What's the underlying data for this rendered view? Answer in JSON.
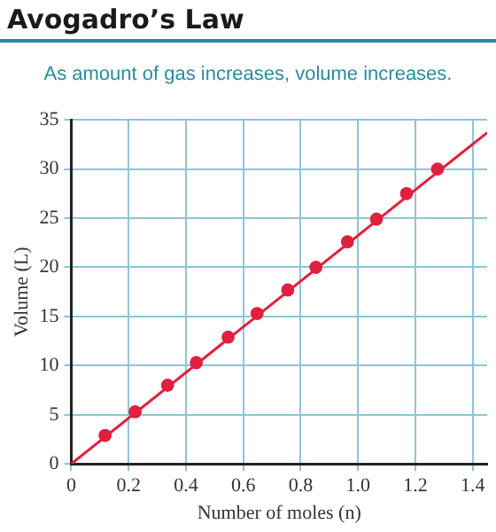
{
  "chart_data": {
    "type": "scatter",
    "title": "Avogadro’s Law",
    "subtitle": "As amount of gas increases, volume increases.",
    "xlabel": "Number of moles (n)",
    "ylabel": "Volume (L)",
    "series": [
      {
        "type": "scatter",
        "color": "#e0203e",
        "x": [
          0.118,
          0.223,
          0.336,
          0.436,
          0.547,
          0.648,
          0.755,
          0.853,
          0.963,
          1.064,
          1.169,
          1.277
        ],
        "values": [
          2.9,
          5.3,
          8.0,
          10.3,
          12.9,
          15.3,
          17.7,
          20.0,
          22.6,
          24.9,
          27.5,
          30.0
        ]
      },
      {
        "type": "line",
        "marker": "none",
        "color": "#e0203e",
        "x": [
          0,
          1.45
        ],
        "values": [
          0,
          33.7
        ]
      }
    ],
    "xlim": [
      0,
      1.45
    ],
    "xticks": [
      0,
      0.2,
      0.4,
      0.6,
      0.8,
      {
        "value": 1,
        "label": "1.0"
      },
      1.2,
      1.4
    ],
    "ylim": [
      0,
      35
    ],
    "yticks": [
      0,
      5,
      10,
      15,
      20,
      25,
      30,
      35
    ],
    "grid": true,
    "marker": "circle",
    "legend": false
  }
}
